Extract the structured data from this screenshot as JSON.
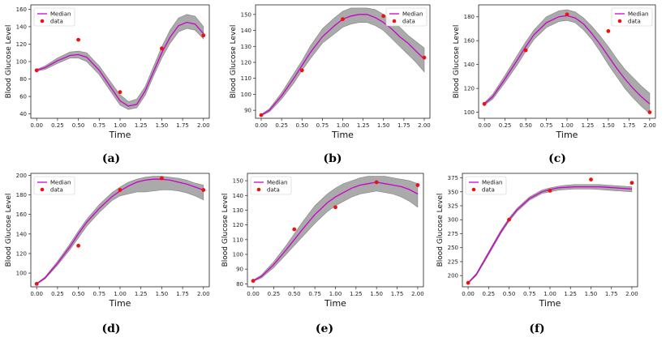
{
  "figure": {
    "panels": [
      {
        "caption": "(a)",
        "legend": {
          "median": "Median",
          "data": "data"
        }
      },
      {
        "caption": "(b)",
        "legend": {
          "median": "Median",
          "data": "data"
        }
      },
      {
        "caption": "(c)",
        "legend": {
          "median": "Median",
          "data": "data"
        }
      },
      {
        "caption": "(d)",
        "legend": {
          "median": "Median",
          "data": "data"
        }
      },
      {
        "caption": "(e)",
        "legend": {
          "median": "Median",
          "data": "data"
        }
      },
      {
        "caption": "(f)",
        "legend": {
          "median": "Median",
          "data": "data"
        }
      }
    ]
  },
  "colors": {
    "median": "#cc00cc",
    "band": "#aaaaaa",
    "data": "#ee1111"
  },
  "chart_data": [
    {
      "type": "line",
      "title": "",
      "xlabel": "Time",
      "ylabel": "Blood Glucose Level",
      "xticks": [
        0,
        0.25,
        0.5,
        0.75,
        1.0,
        1.25,
        1.5,
        1.75,
        2.0
      ],
      "xtick_labels": [
        "0.00",
        "0.25",
        "0.50",
        "0.75",
        "1.00",
        "1.25",
        "1.50",
        "1.75",
        "2.00"
      ],
      "yticks": [
        40,
        60,
        80,
        100,
        120,
        140,
        160
      ],
      "xlim": [
        -0.07,
        2.07
      ],
      "ylim": [
        35,
        165
      ],
      "data_points": {
        "x": [
          0,
          0.5,
          1.0,
          1.5,
          2.0
        ],
        "y": [
          90,
          125,
          65,
          115,
          130
        ]
      },
      "median": {
        "x": [
          0,
          0.1,
          0.25,
          0.4,
          0.5,
          0.6,
          0.75,
          0.9,
          1.0,
          1.1,
          1.2,
          1.3,
          1.4,
          1.5,
          1.6,
          1.7,
          1.8,
          1.9,
          2.0
        ],
        "y": [
          90,
          93,
          101,
          107,
          108,
          105,
          90,
          69,
          55,
          49,
          51,
          66,
          88,
          110,
          128,
          141,
          145,
          143,
          132
        ]
      },
      "band_upper": [
        91,
        95,
        104,
        111,
        112,
        110,
        95,
        75,
        62,
        54,
        57,
        71,
        94,
        117,
        136,
        150,
        154,
        152,
        140
      ],
      "band_lower": [
        89,
        91,
        98,
        104,
        104,
        100,
        85,
        64,
        50,
        45,
        47,
        61,
        83,
        104,
        121,
        134,
        138,
        136,
        126
      ],
      "legend_position": "upper-left"
    },
    {
      "type": "line",
      "title": "",
      "xlabel": "Time",
      "ylabel": "Blood Glucose Level",
      "xticks": [
        0,
        0.25,
        0.5,
        0.75,
        1.0,
        1.25,
        1.5,
        1.75,
        2.0
      ],
      "xtick_labels": [
        "0.00",
        "0.25",
        "0.50",
        "0.75",
        "1.00",
        "1.25",
        "1.50",
        "1.75",
        "2.00"
      ],
      "yticks": [
        90,
        100,
        110,
        120,
        130,
        140,
        150
      ],
      "xlim": [
        -0.07,
        2.07
      ],
      "ylim": [
        85,
        156
      ],
      "data_points": {
        "x": [
          0,
          0.5,
          1.0,
          1.5,
          2.0
        ],
        "y": [
          87,
          115,
          147,
          149,
          123
        ]
      },
      "median": {
        "x": [
          0,
          0.1,
          0.25,
          0.4,
          0.5,
          0.6,
          0.75,
          0.9,
          1.0,
          1.1,
          1.2,
          1.3,
          1.4,
          1.5,
          1.6,
          1.7,
          1.8,
          1.9,
          2.0
        ],
        "y": [
          87,
          90,
          99,
          110,
          118,
          126,
          136,
          143,
          147,
          149,
          150,
          150,
          148,
          145,
          141,
          136,
          132,
          127,
          122
        ]
      },
      "band_upper": [
        87.5,
        91,
        101,
        113,
        121,
        130,
        141,
        148,
        152,
        154,
        154,
        154,
        153,
        150,
        146,
        142,
        137,
        133,
        129
      ],
      "band_lower": [
        86.5,
        89,
        97,
        107,
        115,
        122,
        132,
        138,
        142,
        144,
        145,
        145,
        143,
        140,
        135,
        130,
        125,
        120,
        114
      ],
      "legend_position": "upper-right"
    },
    {
      "type": "line",
      "title": "",
      "xlabel": "Time",
      "ylabel": "Blood Glucose Level",
      "xticks": [
        0,
        0.25,
        0.5,
        0.75,
        1.0,
        1.25,
        1.5,
        1.75,
        2.0
      ],
      "xtick_labels": [
        "0.00",
        "0.25",
        "0.50",
        "0.75",
        "1.00",
        "1.25",
        "1.50",
        "1.75",
        "2.00"
      ],
      "yticks": [
        100,
        120,
        140,
        160,
        180
      ],
      "xlim": [
        -0.07,
        2.07
      ],
      "ylim": [
        95,
        190
      ],
      "data_points": {
        "x": [
          0,
          0.5,
          1.0,
          1.5,
          2.0
        ],
        "y": [
          107,
          152,
          182,
          168,
          100
        ]
      },
      "median": {
        "x": [
          0,
          0.1,
          0.25,
          0.4,
          0.5,
          0.6,
          0.75,
          0.9,
          1.0,
          1.1,
          1.2,
          1.3,
          1.4,
          1.5,
          1.6,
          1.7,
          1.8,
          1.9,
          2.0
        ],
        "y": [
          107,
          113,
          128,
          144,
          155,
          165,
          175,
          180,
          181,
          179,
          174,
          166,
          157,
          147,
          137,
          128,
          120,
          113,
          107
        ]
      },
      "band_upper": [
        108,
        115,
        131,
        148,
        159,
        169,
        180,
        185,
        186,
        184,
        179,
        172,
        164,
        155,
        145,
        136,
        129,
        122,
        116
      ],
      "band_lower": [
        106,
        111,
        125,
        140,
        151,
        161,
        171,
        176,
        177,
        175,
        169,
        161,
        151,
        140,
        130,
        120,
        112,
        105,
        99
      ],
      "legend_position": "upper-right"
    },
    {
      "type": "line",
      "title": "",
      "xlabel": "Time",
      "ylabel": "Blood Glucose Level",
      "xticks": [
        0,
        0.25,
        0.5,
        0.75,
        1.0,
        1.25,
        1.5,
        1.75,
        2.0
      ],
      "xtick_labels": [
        "0.00",
        "0.25",
        "0.50",
        "0.75",
        "1.00",
        "1.25",
        "1.50",
        "1.75",
        "2.00"
      ],
      "yticks": [
        100,
        120,
        140,
        160,
        180,
        200
      ],
      "xlim": [
        -0.07,
        2.07
      ],
      "ylim": [
        86,
        202
      ],
      "data_points": {
        "x": [
          0,
          0.5,
          1.0,
          1.5,
          2.0
        ],
        "y": [
          89,
          128,
          185,
          197,
          185
        ]
      },
      "median": {
        "x": [
          0,
          0.1,
          0.25,
          0.4,
          0.5,
          0.6,
          0.75,
          0.9,
          1.0,
          1.1,
          1.2,
          1.3,
          1.4,
          1.5,
          1.6,
          1.7,
          1.8,
          1.9,
          2.0
        ],
        "y": [
          89,
          95,
          110,
          127,
          140,
          152,
          166,
          178,
          184,
          189,
          193,
          195,
          196,
          196,
          195,
          193,
          191,
          188,
          185
        ]
      },
      "band_upper": [
        89.5,
        96,
        112,
        130,
        143,
        155,
        170,
        182,
        188,
        193,
        196,
        198,
        199,
        199,
        198,
        197,
        195,
        192,
        190
      ],
      "band_lower": [
        88.5,
        94,
        108,
        124,
        136,
        148,
        162,
        174,
        179,
        181,
        183,
        183,
        184,
        185,
        185,
        184,
        182,
        179,
        175
      ],
      "legend_position": "upper-left"
    },
    {
      "type": "line",
      "title": "",
      "xlabel": "Time",
      "ylabel": "Blood Glucose Level",
      "xticks": [
        0,
        0.25,
        0.5,
        0.75,
        1.0,
        1.25,
        1.5,
        1.75,
        2.0
      ],
      "xtick_labels": [
        "0.00",
        "0.25",
        "0.50",
        "0.75",
        "1.00",
        "1.25",
        "1.50",
        "1.75",
        "2.00"
      ],
      "yticks": [
        80,
        90,
        100,
        110,
        120,
        130,
        140,
        150
      ],
      "xlim": [
        -0.07,
        2.07
      ],
      "ylim": [
        78,
        155
      ],
      "data_points": {
        "x": [
          0,
          0.5,
          1.0,
          1.5,
          2.0
        ],
        "y": [
          82,
          117,
          132,
          149,
          147
        ]
      },
      "median": {
        "x": [
          0,
          0.1,
          0.25,
          0.4,
          0.5,
          0.6,
          0.75,
          0.9,
          1.0,
          1.1,
          1.2,
          1.3,
          1.4,
          1.5,
          1.6,
          1.7,
          1.8,
          1.9,
          2.0
        ],
        "y": [
          82,
          85,
          93,
          103,
          110,
          117,
          127,
          135,
          139,
          142,
          145,
          147,
          148,
          149,
          148,
          147,
          146,
          144,
          141
        ]
      },
      "band_upper": [
        82.5,
        86,
        95,
        106,
        114,
        122,
        133,
        141,
        145,
        148,
        150,
        152,
        153,
        153,
        153,
        152,
        151,
        150,
        148
      ],
      "band_lower": [
        81.5,
        84,
        91,
        100,
        106,
        112,
        121,
        129,
        133,
        136,
        139,
        141,
        142,
        143,
        142,
        141,
        139,
        136,
        132
      ],
      "legend_position": "upper-left"
    },
    {
      "type": "line",
      "title": "",
      "xlabel": "Time",
      "ylabel": "Blood Glucose Level",
      "xticks": [
        0,
        0.25,
        0.5,
        0.75,
        1.0,
        1.25,
        1.5,
        1.75,
        2.0
      ],
      "xtick_labels": [
        "0.00",
        "0.25",
        "0.50",
        "0.75",
        "1.00",
        "1.25",
        "1.50",
        "1.75",
        "2.00"
      ],
      "yticks": [
        200,
        225,
        250,
        275,
        300,
        325,
        350,
        375
      ],
      "xlim": [
        -0.07,
        2.07
      ],
      "ylim": [
        180,
        383
      ],
      "data_points": {
        "x": [
          0,
          0.5,
          1.0,
          1.5,
          2.0
        ],
        "y": [
          187,
          300,
          352,
          372,
          366
        ]
      },
      "median": {
        "x": [
          0,
          0.1,
          0.25,
          0.4,
          0.5,
          0.6,
          0.75,
          0.9,
          1.0,
          1.1,
          1.2,
          1.3,
          1.4,
          1.5,
          1.6,
          1.7,
          1.8,
          1.9,
          2.0
        ],
        "y": [
          187,
          202,
          240,
          278,
          300,
          318,
          338,
          350,
          354,
          357,
          358,
          359,
          359,
          359,
          359,
          358,
          357,
          356,
          355
        ]
      },
      "band_upper": [
        188,
        204,
        243,
        281,
        303,
        321,
        341,
        353,
        357,
        360,
        362,
        363,
        363,
        363,
        363,
        362,
        361,
        360,
        359
      ],
      "band_lower": [
        186,
        200,
        237,
        275,
        297,
        315,
        335,
        347,
        350,
        353,
        354,
        355,
        355,
        355,
        354,
        353,
        352,
        351,
        350
      ],
      "legend_position": "upper-left"
    }
  ]
}
